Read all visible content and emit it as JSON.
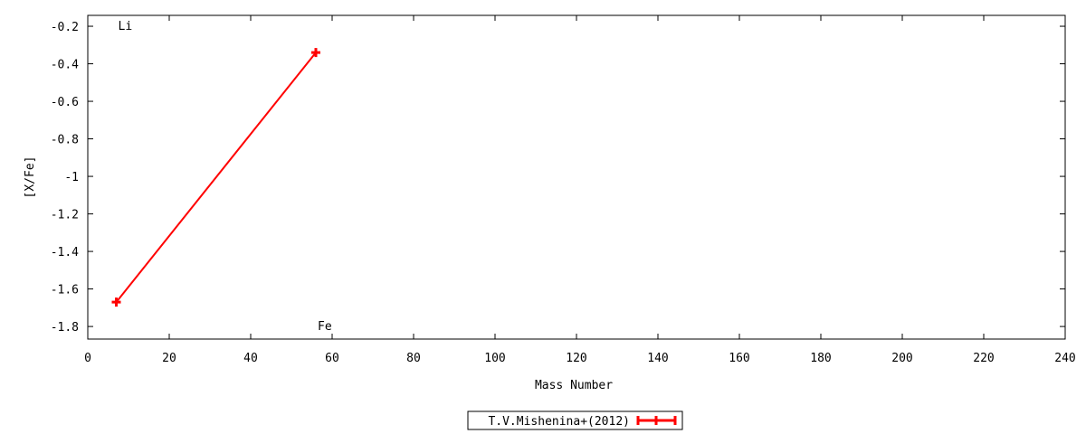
{
  "chart_data": {
    "type": "line",
    "title": "",
    "xlabel": "Mass Number",
    "ylabel": "[X/Fe]",
    "xlim": [
      0,
      240
    ],
    "ylim": [
      -1.867,
      -0.142
    ],
    "xticks": [
      0,
      20,
      40,
      60,
      80,
      100,
      120,
      140,
      160,
      180,
      200,
      220,
      240
    ],
    "yticks": [
      -0.2,
      -0.4,
      -0.6,
      -0.8,
      -1,
      -1.2,
      -1.4,
      -1.6,
      -1.8
    ],
    "grid": false,
    "legend_position": "bottom-center",
    "series": [
      {
        "name": "T.V.Mishenina+(2012)",
        "color": "#ff0000",
        "marker": "plus-errorbar",
        "x": [
          7,
          56
        ],
        "y": [
          -1.67,
          -0.34
        ]
      }
    ],
    "annotations": [
      {
        "text": "Li",
        "x": 7,
        "y": -0.2
      },
      {
        "text": "Fe",
        "x": 56,
        "y": -1.8
      }
    ]
  }
}
